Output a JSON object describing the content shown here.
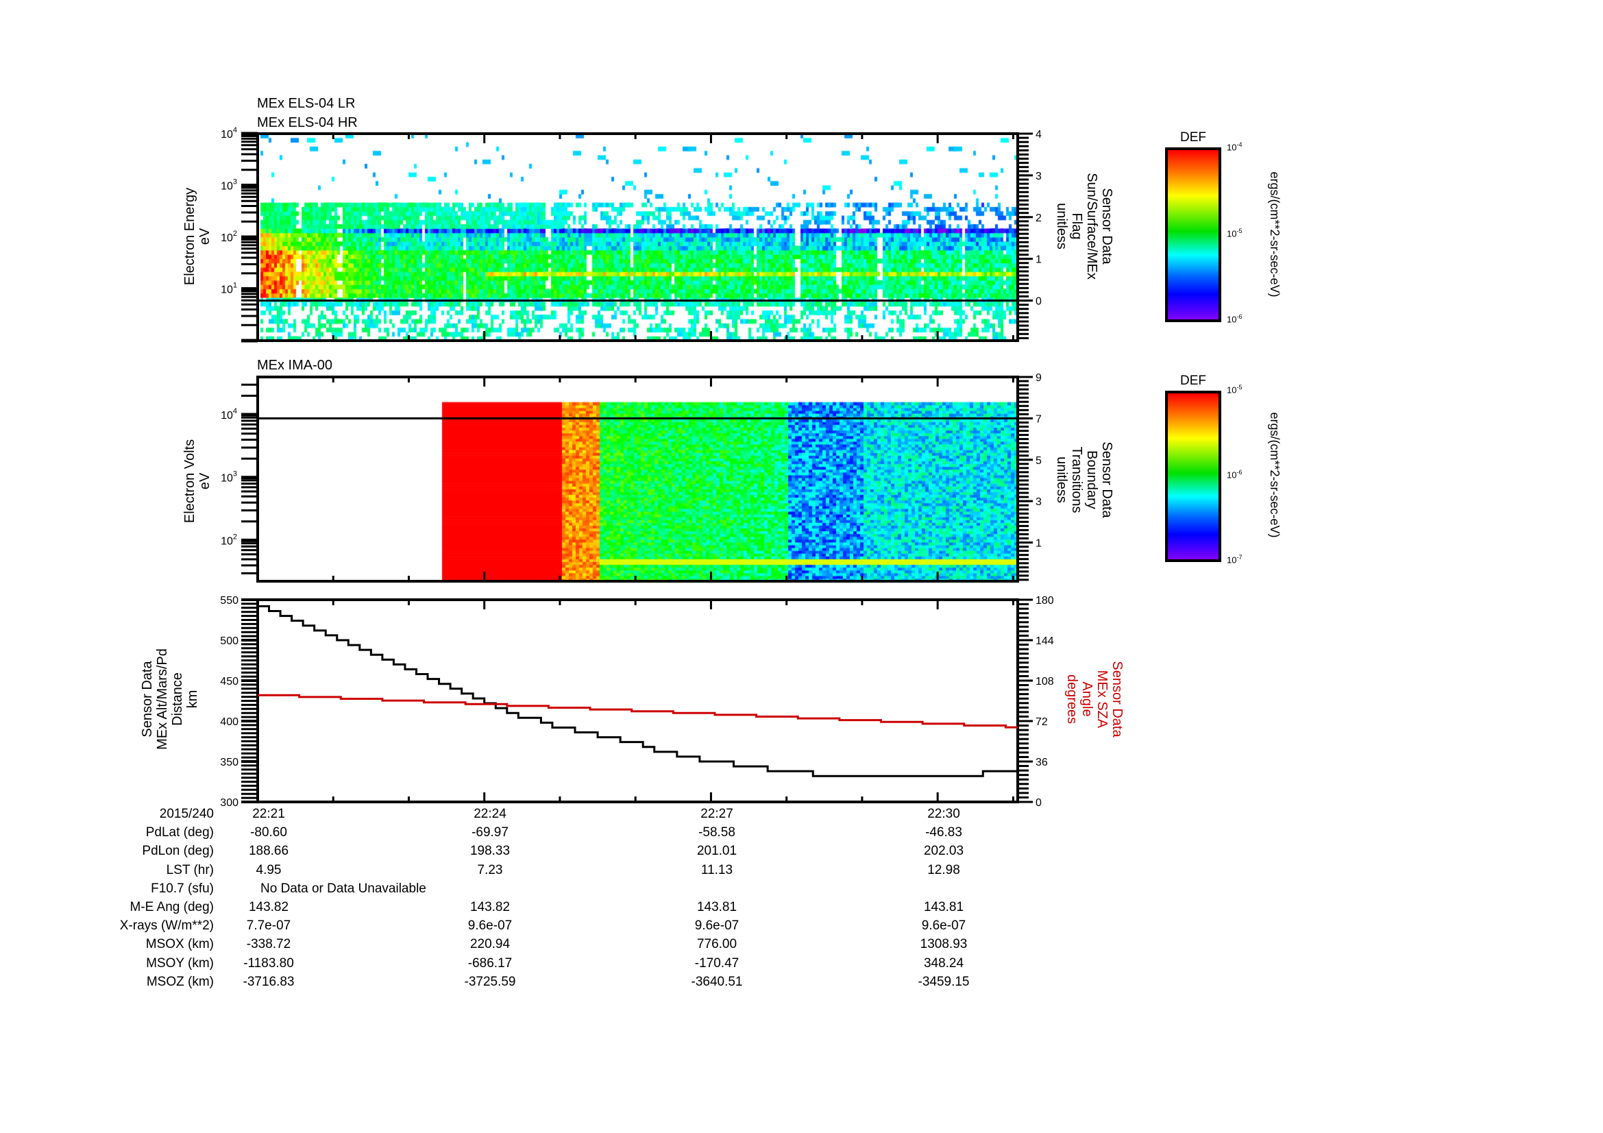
{
  "colors": {
    "axis": "#000000",
    "altitude_line": "#000000",
    "sza_line": "#cc0000",
    "sza_label": "#cc0000"
  },
  "chart_data": [
    {
      "type": "heatmap",
      "titles": [
        "MEx ELS-04 LR",
        "MEx ELS-04 HR"
      ],
      "ylabel": [
        "Electron Energy",
        "eV"
      ],
      "yscale": "log",
      "ylim": [
        1,
        10000
      ],
      "yticks": [
        {
          "exp": "1"
        },
        {
          "exp": "2"
        },
        {
          "exp": "3"
        },
        {
          "exp": "4"
        }
      ],
      "y2label": [
        "Sensor Data",
        "Sun/Surface/MEx",
        "Flag",
        "unitless"
      ],
      "y2lim": [
        -0.96,
        4
      ],
      "y2ticks": [
        "0",
        "1",
        "2",
        "3",
        "4"
      ],
      "flag_value": 0,
      "colorbar": {
        "title": "DEF",
        "units": "ergs/(cm**2-sr-sec-eV)",
        "ticks": [
          {
            "exp": "-4"
          },
          {
            "exp": "-5"
          },
          {
            "exp": "-6"
          }
        ],
        "range_log": [
          -6,
          -4
        ]
      },
      "xlim_minutes_after_2221": [
        0,
        10.06
      ]
    },
    {
      "type": "heatmap",
      "titles": [
        "MEx IMA-00"
      ],
      "ylabel": [
        "Electron Volts",
        "eV"
      ],
      "yscale": "log",
      "ylim": [
        22,
        40000
      ],
      "yticks": [
        {
          "exp": "2"
        },
        {
          "exp": "3"
        },
        {
          "exp": "4"
        }
      ],
      "y2label": [
        "Sensor Data",
        "Boundary",
        "Transitions",
        "unitless"
      ],
      "y2lim": [
        -0.87,
        9
      ],
      "y2ticks": [
        "1",
        "3",
        "5",
        "7",
        "9"
      ],
      "flag_value": 7,
      "data_start_minutes": 2.44,
      "colorbar": {
        "title": "DEF",
        "units": "ergs/(cm**2-sr-sec-eV)",
        "ticks": [
          {
            "exp": "-5"
          },
          {
            "exp": "-6"
          },
          {
            "exp": "-7"
          }
        ],
        "range_log": [
          -7,
          -5
        ]
      },
      "xlim_minutes_after_2221": [
        0,
        10.06
      ]
    },
    {
      "type": "line",
      "ylabel": [
        "Sensor Data",
        "MEx Alt/Mars/Pd",
        "Distance",
        "km"
      ],
      "ylim": [
        300,
        550
      ],
      "yticks": [
        "300",
        "350",
        "400",
        "450",
        "500",
        "550"
      ],
      "y2label": [
        "Sensor Data",
        "MEx SZA",
        "Angle",
        "degrees"
      ],
      "y2lim": [
        0,
        180
      ],
      "y2ticks": [
        "0",
        "36",
        "72",
        "108",
        "144",
        "180"
      ],
      "xlim_minutes_after_2221": [
        0,
        10.06
      ],
      "series": [
        {
          "name": "MEx Alt/Mars/Pd Distance (km)",
          "axis": "left",
          "x": [
            0,
            1,
            2,
            3,
            4,
            5,
            6,
            7,
            7.5,
            8,
            9,
            9.5,
            10.06
          ],
          "y": [
            540,
            503,
            458,
            417,
            390,
            368,
            348,
            336,
            330,
            328,
            328,
            333,
            336
          ]
        },
        {
          "name": "MEx SZA Angle (degrees)",
          "axis": "right",
          "x": [
            0,
            10.06
          ],
          "y": [
            95,
            66
          ]
        }
      ]
    }
  ],
  "xaxis": {
    "date": "2015/240",
    "ticks": [
      "22:21",
      "22:24",
      "22:27",
      "22:30"
    ]
  },
  "ephemeris": {
    "rows": [
      {
        "label": "PdLat (deg)",
        "values": [
          "-80.60",
          "-69.97",
          "-58.58",
          "-46.83"
        ]
      },
      {
        "label": "PdLon (deg)",
        "values": [
          "188.66",
          "198.33",
          "201.01",
          "202.03"
        ]
      },
      {
        "label": "LST (hr)",
        "values": [
          "4.95",
          "7.23",
          "11.13",
          "12.98"
        ]
      },
      {
        "label": "F10.7 (sfu)",
        "note": "No Data or Data Unavailable"
      },
      {
        "label": "M-E Ang (deg)",
        "values": [
          "143.82",
          "143.82",
          "143.81",
          "143.81"
        ]
      },
      {
        "label": "X-rays (W/m**2)",
        "values": [
          "7.7e-07",
          "9.6e-07",
          "9.6e-07",
          "9.6e-07"
        ]
      },
      {
        "label": "MSOX (km)",
        "values": [
          "-338.72",
          "220.94",
          "776.00",
          "1308.93"
        ]
      },
      {
        "label": "MSOY (km)",
        "values": [
          "-1183.80",
          "-686.17",
          "-170.47",
          "348.24"
        ]
      },
      {
        "label": "MSOZ (km)",
        "values": [
          "-3716.83",
          "-3725.59",
          "-3640.51",
          "-3459.15"
        ]
      }
    ]
  }
}
